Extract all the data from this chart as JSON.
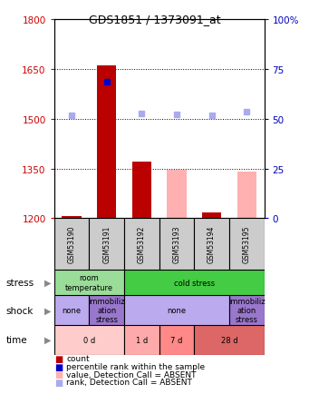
{
  "title": "GDS1851 / 1373091_at",
  "samples": [
    "GSM53190",
    "GSM53191",
    "GSM53192",
    "GSM53193",
    "GSM53194",
    "GSM53195"
  ],
  "ylim_left": [
    1200,
    1800
  ],
  "ylim_right": [
    0,
    100
  ],
  "yticks_left": [
    1200,
    1350,
    1500,
    1650,
    1800
  ],
  "yticks_right": [
    0,
    25,
    50,
    75,
    100
  ],
  "count_values": [
    1207,
    1660,
    1370,
    1200,
    1218,
    1200
  ],
  "absent_value_bars": [
    1207,
    1200,
    1200,
    1345,
    1200,
    1340
  ],
  "percentile_rank_dots_y": [
    null,
    1610,
    null,
    null,
    null,
    null
  ],
  "absent_rank_dots_y": [
    1510,
    null,
    1515,
    1512,
    1510,
    1520
  ],
  "percentile_rank_color": "#0000cc",
  "absent_rank_color": "#aaaaee",
  "count_color": "#bb0000",
  "absent_value_color": "#ffb0b0",
  "stress_row": [
    {
      "label": "room\ntemperature",
      "start": 0,
      "end": 2,
      "color": "#99dd99"
    },
    {
      "label": "cold stress",
      "start": 2,
      "end": 6,
      "color": "#44cc44"
    }
  ],
  "shock_row": [
    {
      "label": "none",
      "start": 0,
      "end": 1,
      "color": "#bbaaee"
    },
    {
      "label": "immobiliz\nation\nstress",
      "start": 1,
      "end": 2,
      "color": "#9977cc"
    },
    {
      "label": "none",
      "start": 2,
      "end": 5,
      "color": "#bbaaee"
    },
    {
      "label": "immobiliz\nation\nstress",
      "start": 5,
      "end": 6,
      "color": "#9977cc"
    }
  ],
  "time_row": [
    {
      "label": "0 d",
      "start": 0,
      "end": 2,
      "color": "#ffcccc"
    },
    {
      "label": "1 d",
      "start": 2,
      "end": 3,
      "color": "#ffaaaa"
    },
    {
      "label": "7 d",
      "start": 3,
      "end": 4,
      "color": "#ff8888"
    },
    {
      "label": "28 d",
      "start": 4,
      "end": 6,
      "color": "#dd6666"
    }
  ],
  "bg_color": "#ffffff",
  "axis_left_color": "#cc0000",
  "axis_right_color": "#0000bb",
  "bar_width": 0.55,
  "sample_box_color": "#cccccc",
  "legend_items": [
    {
      "color": "#bb0000",
      "label": "count"
    },
    {
      "color": "#0000cc",
      "label": "percentile rank within the sample"
    },
    {
      "color": "#ffb0b0",
      "label": "value, Detection Call = ABSENT"
    },
    {
      "color": "#aaaaee",
      "label": "rank, Detection Call = ABSENT"
    }
  ]
}
